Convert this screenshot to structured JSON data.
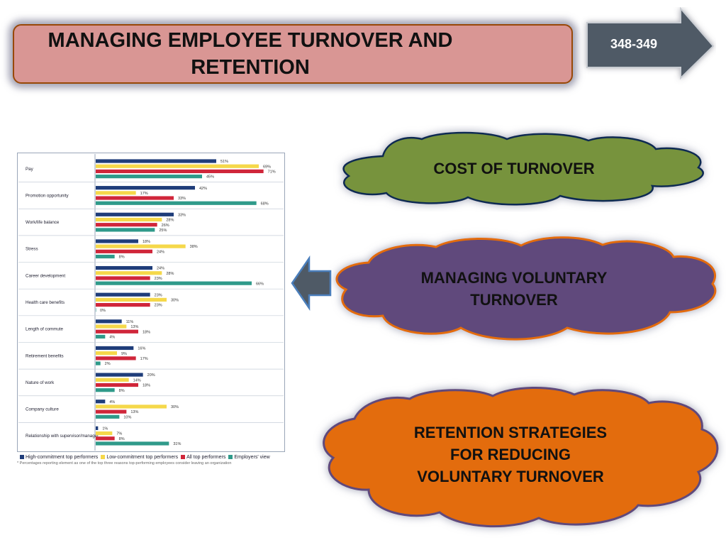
{
  "header": {
    "title_line1": "MANAGING EMPLOYEE TURNOVER AND",
    "title_line2": "RETENTION",
    "page_ref": "348-349"
  },
  "clouds": {
    "cost": "COST OF TURNOVER",
    "voluntary_line1": "MANAGING VOLUNTARY",
    "voluntary_line2": "TURNOVER",
    "retention_line1": "RETENTION STRATEGIES",
    "retention_line2": "FOR REDUCING",
    "retention_line3": "VOLUNTARY TURNOVER"
  },
  "colors": {
    "title_bg": "#d99694",
    "cost_cloud": "#77933c",
    "voluntary_cloud": "#604a7b",
    "retention_cloud": "#e36c0a",
    "arrow": "#4f5a66"
  },
  "chart_data": {
    "type": "bar",
    "orientation": "horizontal",
    "categories": [
      "Pay",
      "Promotion opportunity",
      "Work/life balance",
      "Stress",
      "Career development",
      "Health care benefits",
      "Length of commute",
      "Retirement benefits",
      "Nature of work",
      "Company culture",
      "Relationship with supervisor/manager"
    ],
    "series": [
      {
        "name": "High-commitment top performers",
        "color": "#1f3d7a",
        "values": [
          51,
          42,
          33,
          18,
          24,
          23,
          11,
          16,
          20,
          4,
          1
        ]
      },
      {
        "name": "Low-commitment top performers",
        "color": "#f5d84a",
        "values": [
          69,
          17,
          28,
          38,
          28,
          30,
          13,
          9,
          14,
          30,
          7
        ]
      },
      {
        "name": "All top performers",
        "color": "#d0263a",
        "values": [
          71,
          33,
          26,
          24,
          23,
          23,
          18,
          17,
          18,
          13,
          8
        ]
      },
      {
        "name": "Employers' view",
        "color": "#2f9a8a",
        "values": [
          45,
          68,
          25,
          8,
          66,
          0,
          4,
          2,
          8,
          10,
          31
        ]
      }
    ],
    "xlim": [
      0,
      75
    ],
    "footnote": "* Percentages reporting element as one of the top three reasons top-performing employees consider leaving an organization"
  }
}
